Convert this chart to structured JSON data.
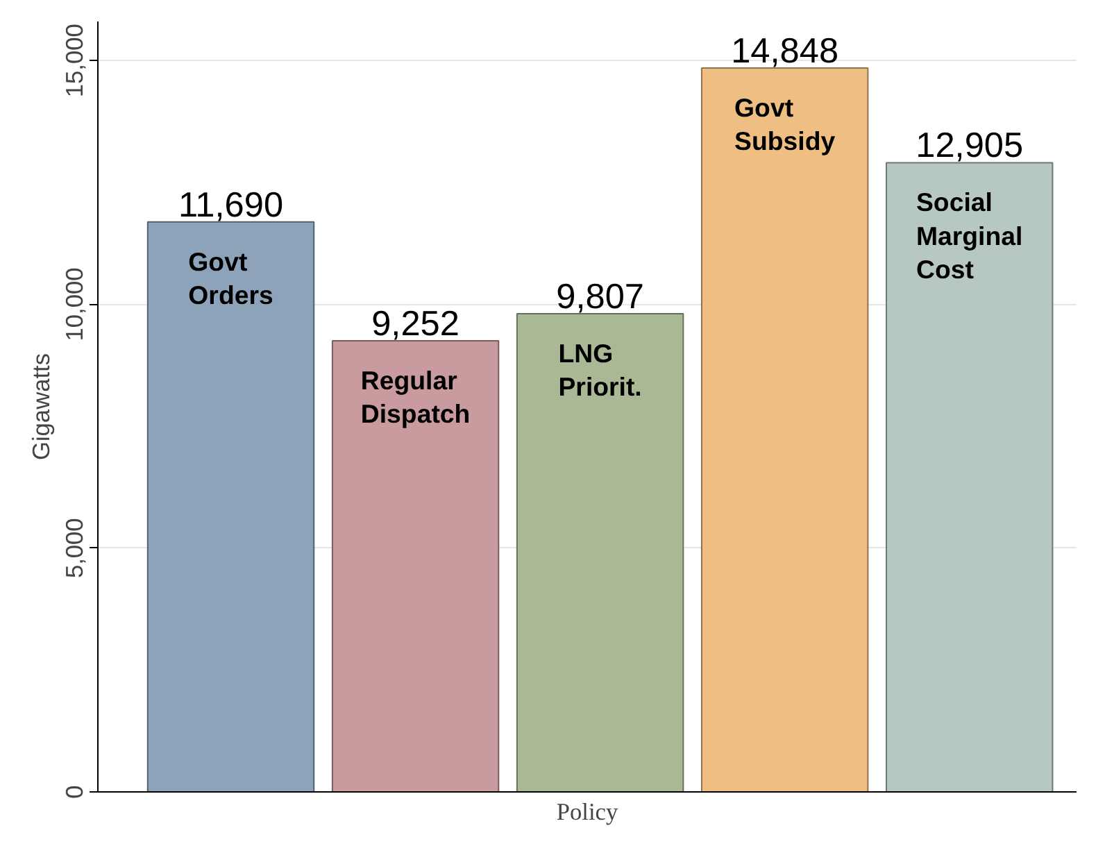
{
  "chart_data": {
    "type": "bar",
    "xlabel": "Policy",
    "ylabel": "Gigawatts",
    "categories": [
      "Govt\nOrders",
      "Regular\nDispatch",
      "LNG\nPriorit.",
      "Govt\nSubsidy",
      "Social\nMarginal\nCost"
    ],
    "values": [
      11690,
      9252,
      9807,
      14848,
      12905
    ],
    "colors": [
      "#8ca3b9",
      "#c99a9e",
      "#aab995",
      "#efbe82",
      "#b7c8c3"
    ],
    "ylim": [
      0,
      15800
    ],
    "yticks": [
      {
        "value": 0,
        "label": "0"
      },
      {
        "value": 5000,
        "label": "5,000"
      },
      {
        "value": 10000,
        "label": "10,000"
      },
      {
        "value": 15000,
        "label": "15,000"
      }
    ],
    "value_labels": [
      "11,690",
      "9,252",
      "9,807",
      "14,848",
      "12,905"
    ],
    "grid": "y",
    "tick_labels": "y"
  }
}
